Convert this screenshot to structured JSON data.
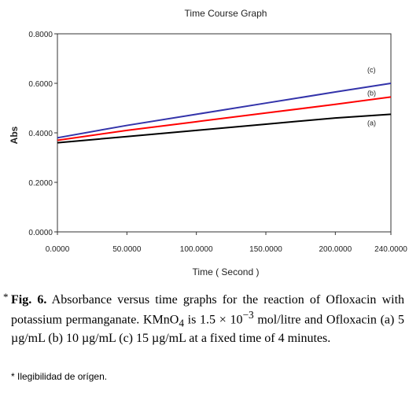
{
  "chart_data": {
    "type": "line",
    "title": "Time Course Graph",
    "xlabel": "Time ( Second )",
    "ylabel": "Abs",
    "xlim": [
      0,
      240
    ],
    "ylim": [
      0,
      0.8
    ],
    "x_ticks": [
      "0.0000",
      "50.0000",
      "100.0000",
      "150.0000",
      "200.0000",
      "240.0000"
    ],
    "x_tick_values": [
      0,
      50,
      100,
      150,
      200,
      240
    ],
    "y_ticks": [
      "0.0000",
      "0.2000",
      "0.4000",
      "0.6000",
      "0.8000"
    ],
    "y_tick_values": [
      0,
      0.2,
      0.4,
      0.6,
      0.8
    ],
    "grid": false,
    "series": [
      {
        "name": "(a)",
        "color": "#000000",
        "x": [
          0,
          50,
          100,
          150,
          200,
          240
        ],
        "y": [
          0.36,
          0.385,
          0.41,
          0.435,
          0.46,
          0.475
        ]
      },
      {
        "name": "(b)",
        "color": "#ff0000",
        "x": [
          0,
          50,
          100,
          150,
          200,
          240
        ],
        "y": [
          0.37,
          0.41,
          0.445,
          0.48,
          0.515,
          0.545
        ]
      },
      {
        "name": "(c)",
        "color": "#3333aa",
        "x": [
          0,
          50,
          100,
          150,
          200,
          240
        ],
        "y": [
          0.38,
          0.43,
          0.475,
          0.52,
          0.565,
          0.6
        ]
      }
    ]
  },
  "caption": {
    "star": "*",
    "fig_label": "Fig. 6.",
    "text_1": " Absorbance versus time graphs for the reaction of Ofloxacin with potassium permanganate. KMnO",
    "sub_4": "4",
    "text_2": " is 1.5 × 10",
    "sup_exp": "−3",
    "text_3": " mol/litre and Ofloxacin (a) 5 µg/mL (b) 10 µg/mL (c) 15 µg/mL at a fixed time of 4 minutes."
  },
  "footnote": "* Ilegibilidad de orígen."
}
